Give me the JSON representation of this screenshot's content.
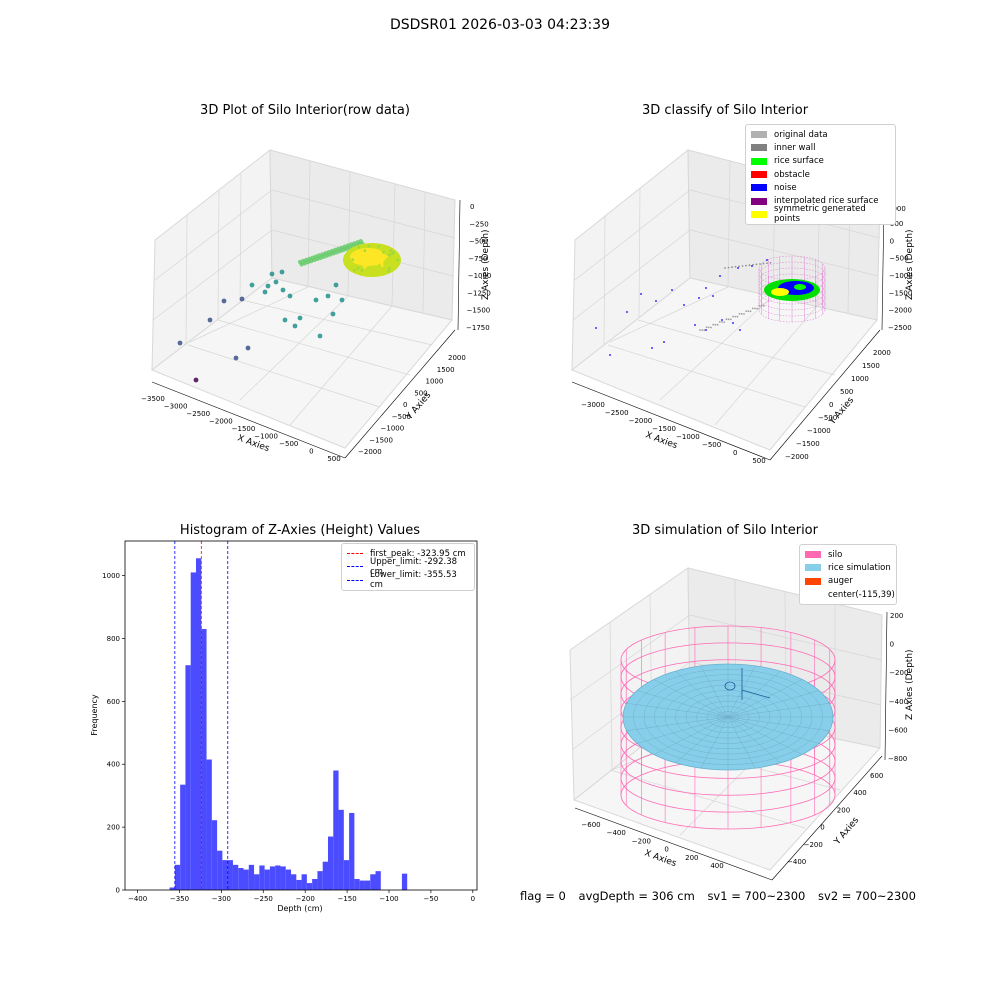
{
  "title": "DSDSR01 2026-03-03 04:23:39",
  "panels": {
    "raw": {
      "title": "3D Plot of Silo Interior(row data)",
      "x_label": "X Axies",
      "y_label": "Y Axies",
      "z_label": "Z Axies (Depth)",
      "x_ticks": [
        "−3500",
        "−3000",
        "−2500",
        "−2000",
        "−1500",
        "−1000",
        "−500",
        "0",
        "500"
      ],
      "y_ticks": [
        "−2000",
        "−1500",
        "−1000",
        "−500",
        "0",
        "500",
        "1000",
        "1500",
        "2000"
      ],
      "z_ticks": [
        "0",
        "−250",
        "−500",
        "−750",
        "−1000",
        "−1250",
        "−1500",
        "−1750"
      ]
    },
    "classify": {
      "title": "3D classify of Silo Interior",
      "x_label": "X Axies",
      "y_label": "Y Axies",
      "z_label": "Z Axies (Depth)",
      "x_ticks": [
        "−3000",
        "−2500",
        "−2000",
        "−1500",
        "−1000",
        "−500",
        "0",
        "500"
      ],
      "y_ticks": [
        "−2000",
        "−1500",
        "−1000",
        "−500",
        "0",
        "500",
        "1000",
        "1500",
        "2000"
      ],
      "z_ticks": [
        "500",
        "0",
        "−500",
        "−1000",
        "−1500",
        "−2000",
        "−2500"
      ],
      "z_tick_top": "1000",
      "legend": [
        {
          "label": "original data",
          "color": "#b0b0b0"
        },
        {
          "label": "inner wall",
          "color": "#808080"
        },
        {
          "label": "rice surface",
          "color": "#00ff00"
        },
        {
          "label": "obstacle",
          "color": "#ff0000"
        },
        {
          "label": "noise",
          "color": "#0000ff"
        },
        {
          "label": "interpolated rice surface",
          "color": "#800080"
        },
        {
          "label": "symmetric generated points",
          "color": "#ffff00"
        }
      ]
    },
    "histogram": {
      "title": "Histogram of Z-Axies (Height) Values",
      "xlabel": "Depth (cm)",
      "ylabel": "Frequency",
      "legend": [
        {
          "label": "first_peak: -323.95 cm",
          "color": "#ff0000"
        },
        {
          "label": "Upper_limit: -292.38 cm",
          "color": "#0000ff"
        },
        {
          "label": "Lower_limit: -355.53 cm",
          "color": "#0000ff"
        }
      ]
    },
    "simulation": {
      "title": "3D simulation of Silo Interior",
      "x_label": "X Axies",
      "y_label": "Y Axies",
      "z_label": "Z Axies (Depth)",
      "x_ticks": [
        "−600",
        "−400",
        "−200",
        "0",
        "200",
        "400"
      ],
      "y_ticks": [
        "−400",
        "−200",
        "0",
        "200",
        "400",
        "600"
      ],
      "z_ticks": [
        "200",
        "0",
        "−200",
        "−400",
        "−600",
        "−800"
      ],
      "legend": [
        {
          "label": "silo",
          "color": "#ff69b4"
        },
        {
          "label": "rice simulation",
          "color": "#87ceeb"
        },
        {
          "label": "auger",
          "color": "#ff4500"
        },
        {
          "label": "center(-115,39)",
          "color": ""
        }
      ]
    }
  },
  "status": {
    "flag": "flag = 0",
    "avg_depth": "avgDepth = 306 cm",
    "sv1": "sv1 = 700~2300",
    "sv2": "sv2 = 700~2300"
  },
  "chart_data": [
    {
      "type": "histogram",
      "title": "Histogram of Z-Axies (Height) Values",
      "xlabel": "Depth (cm)",
      "ylabel": "Frequency",
      "xlim": [
        -415,
        5
      ],
      "ylim": [
        0,
        1110
      ],
      "xticks": [
        -400,
        -350,
        -300,
        -250,
        -200,
        -150,
        -100,
        -50,
        0
      ],
      "yticks": [
        0,
        200,
        400,
        600,
        800,
        1000
      ],
      "bin_width": 6.3,
      "bin_start": -361.8,
      "counts": [
        8,
        80,
        335,
        715,
        1010,
        1055,
        830,
        415,
        222,
        125,
        95,
        95,
        80,
        70,
        65,
        80,
        50,
        78,
        65,
        75,
        78,
        75,
        65,
        50,
        32,
        50,
        22,
        35,
        60,
        90,
        170,
        380,
        255,
        95,
        245,
        35,
        30,
        30,
        50,
        60,
        0,
        0,
        0,
        0,
        52
      ],
      "vlines": [
        {
          "label": "first_peak: -323.95 cm",
          "x": -323.95,
          "color": "#ff0000"
        },
        {
          "label": "Upper_limit: -292.38 cm",
          "x": -292.38,
          "color": "#0000ff"
        },
        {
          "label": "Lower_limit: -355.53 cm",
          "x": -355.53,
          "color": "#0000ff"
        }
      ],
      "bar_color": "#4b4bff"
    },
    {
      "type": "scatter",
      "title": "3D Plot of Silo Interior(row data)",
      "xlabel": "X Axies",
      "ylabel": "Y Axies",
      "zlabel": "Z Axies (Depth)",
      "xlim": [
        -3500,
        500
      ],
      "ylim": [
        -2000,
        2000
      ],
      "zlim": [
        -1750,
        0
      ],
      "colormap": "viridis"
    },
    {
      "type": "scatter",
      "title": "3D classify of Silo Interior",
      "xlabel": "X Axies",
      "ylabel": "Y Axies",
      "zlabel": "Z Axies (Depth)",
      "xlim": [
        -3000,
        500
      ],
      "ylim": [
        -2000,
        2000
      ],
      "zlim": [
        -2500,
        1000
      ],
      "series": [
        {
          "name": "original data"
        },
        {
          "name": "inner wall"
        },
        {
          "name": "rice surface"
        },
        {
          "name": "obstacle"
        },
        {
          "name": "noise"
        },
        {
          "name": "interpolated rice surface"
        },
        {
          "name": "symmetric generated points"
        }
      ]
    },
    {
      "type": "area",
      "title": "3D simulation of Silo Interior",
      "xlabel": "X Axies",
      "ylabel": "Y Axies",
      "zlabel": "Z Axies (Depth)",
      "xlim": [
        -600,
        400
      ],
      "ylim": [
        -400,
        600
      ],
      "zlim": [
        -800,
        200
      ],
      "series": [
        {
          "name": "silo"
        },
        {
          "name": "rice simulation"
        },
        {
          "name": "auger"
        }
      ],
      "center": [
        -115,
        39
      ]
    }
  ]
}
